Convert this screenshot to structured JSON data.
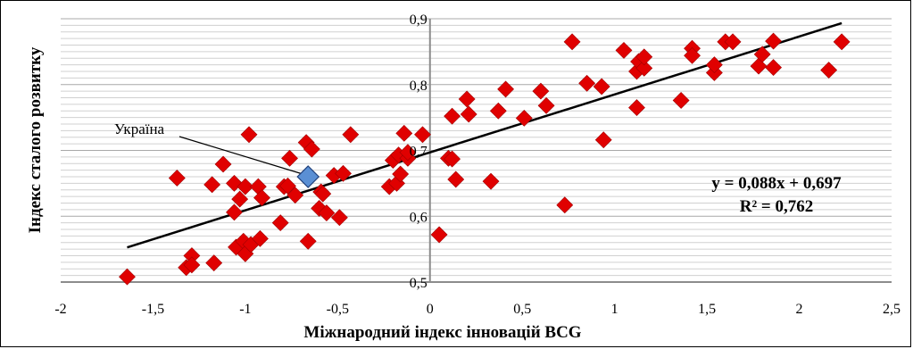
{
  "chart_data": {
    "type": "scatter",
    "xlabel": "Міжнародний індекс інновацій BCG",
    "ylabel": "Індекс сталого розвитку",
    "xlim": [
      -2,
      2.5
    ],
    "ylim": [
      0.5,
      0.9
    ],
    "x_ticks": [
      "-2",
      "-1,5",
      "-1",
      "-0,5",
      "0",
      "0,5",
      "1",
      "1,5",
      "2",
      "2,5"
    ],
    "y_ticks": [
      "0,5",
      "0,6",
      "0,7",
      "0,8",
      "0,9"
    ],
    "grid": "horizontal",
    "marker_color": "#e00000",
    "highlight_color": "#5a8fd4",
    "trend_color": "#000000",
    "points": [
      [
        -1.64,
        0.508
      ],
      [
        -1.37,
        0.658
      ],
      [
        -1.32,
        0.522
      ],
      [
        -1.29,
        0.54
      ],
      [
        -1.29,
        0.526
      ],
      [
        -1.18,
        0.648
      ],
      [
        -1.17,
        0.529
      ],
      [
        -1.12,
        0.679
      ],
      [
        -1.06,
        0.606
      ],
      [
        -1.06,
        0.65
      ],
      [
        -1.05,
        0.553
      ],
      [
        -1.03,
        0.626
      ],
      [
        -1.01,
        0.562
      ],
      [
        -1.0,
        0.543
      ],
      [
        -1.0,
        0.645
      ],
      [
        -0.98,
        0.724
      ],
      [
        -0.97,
        0.557
      ],
      [
        -0.93,
        0.645
      ],
      [
        -0.92,
        0.566
      ],
      [
        -0.91,
        0.628
      ],
      [
        -0.81,
        0.59
      ],
      [
        -0.79,
        0.645
      ],
      [
        -0.77,
        0.646
      ],
      [
        -0.76,
        0.688
      ],
      [
        -0.73,
        0.632
      ],
      [
        -0.67,
        0.712
      ],
      [
        -0.66,
        0.562
      ],
      [
        -0.64,
        0.702
      ],
      [
        -0.6,
        0.612
      ],
      [
        -0.59,
        0.637
      ],
      [
        -0.58,
        0.634
      ],
      [
        -0.56,
        0.605
      ],
      [
        -0.52,
        0.662
      ],
      [
        -0.49,
        0.598
      ],
      [
        -0.47,
        0.665
      ],
      [
        -0.43,
        0.724
      ],
      [
        -0.22,
        0.645
      ],
      [
        -0.2,
        0.685
      ],
      [
        -0.18,
        0.65
      ],
      [
        -0.17,
        0.693
      ],
      [
        -0.16,
        0.664
      ],
      [
        -0.14,
        0.726
      ],
      [
        -0.12,
        0.688
      ],
      [
        -0.12,
        0.697
      ],
      [
        -0.04,
        0.724
      ],
      [
        0.05,
        0.572
      ],
      [
        0.1,
        0.688
      ],
      [
        0.12,
        0.687
      ],
      [
        0.12,
        0.752
      ],
      [
        0.14,
        0.656
      ],
      [
        0.2,
        0.778
      ],
      [
        0.21,
        0.755
      ],
      [
        0.33,
        0.653
      ],
      [
        0.37,
        0.76
      ],
      [
        0.41,
        0.793
      ],
      [
        0.51,
        0.749
      ],
      [
        0.6,
        0.79
      ],
      [
        0.63,
        0.768
      ],
      [
        0.73,
        0.617
      ],
      [
        0.77,
        0.865
      ],
      [
        0.85,
        0.802
      ],
      [
        0.93,
        0.797
      ],
      [
        0.94,
        0.716
      ],
      [
        1.05,
        0.852
      ],
      [
        1.12,
        0.82
      ],
      [
        1.12,
        0.765
      ],
      [
        1.13,
        0.835
      ],
      [
        1.16,
        0.825
      ],
      [
        1.16,
        0.842
      ],
      [
        1.36,
        0.776
      ],
      [
        1.42,
        0.855
      ],
      [
        1.42,
        0.844
      ],
      [
        1.54,
        0.818
      ],
      [
        1.54,
        0.83
      ],
      [
        1.6,
        0.865
      ],
      [
        1.64,
        0.865
      ],
      [
        1.78,
        0.828
      ],
      [
        1.8,
        0.846
      ],
      [
        1.86,
        0.826
      ],
      [
        1.86,
        0.866
      ],
      [
        2.16,
        0.822
      ],
      [
        2.23,
        0.865
      ]
    ],
    "highlight": {
      "label": "Україна",
      "x": -0.66,
      "y": 0.66
    },
    "trendline": {
      "slope": 0.088,
      "intercept": 0.697,
      "x_start": -1.64,
      "x_end": 2.23,
      "equation": "y = 0,088x + 0,697",
      "r2": "R² = 0,762"
    }
  }
}
